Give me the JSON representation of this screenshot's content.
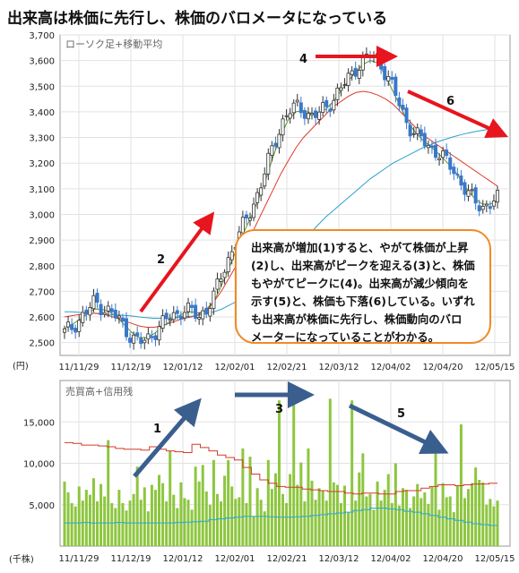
{
  "title": "出来高は株価に先行し、株価のバロメータになっている",
  "annotation_lines": [
    "出来高が増加(1)すると、やがて株価が上昇",
    "(2)し、出来高がピークを迎える(3)と、株価",
    "もやがてピークに(4)。出来高が減少傾向を",
    "示す(5)と、株価も下落(6)している。いずれ",
    "も出来高が株価に先行し、株価動向のバロ",
    "メーターになっていることがわかる。"
  ],
  "colors": {
    "arrow_red": "#e8141e",
    "arrow_blue": "#3a5f8f",
    "volume_bar": "#8dc63f",
    "margin_red": "#d43b2a",
    "margin_cyan": "#2aa7d6",
    "ma_short": "#5a9a2a",
    "ma_mid": "#e03a2a",
    "ma_long": "#2aa0d0",
    "candle_down": "#3a78c8"
  },
  "chart_data": [
    {
      "type": "candlestick",
      "panel_label": "ローソク足+移動平均",
      "ylabel": "(円)",
      "ylim": [
        2450,
        3700
      ],
      "yticks": [
        "2,500",
        "2,600",
        "2,700",
        "2,800",
        "2,900",
        "3,000",
        "3,100",
        "3,200",
        "3,300",
        "3,400",
        "3,500",
        "3,600",
        "3,700"
      ],
      "xticks": [
        "11/11/29",
        "11/12/19",
        "12/01/12",
        "12/02/01",
        "12/02/21",
        "12/03/12",
        "12/04/02",
        "12/04/20",
        "12/05/15"
      ],
      "trend_close": [
        2540,
        2560,
        2590,
        2620,
        2660,
        2640,
        2620,
        2600,
        2560,
        2520,
        2500,
        2510,
        2540,
        2570,
        2600,
        2610,
        2630,
        2620,
        2600,
        2630,
        2680,
        2760,
        2830,
        2900,
        2960,
        3020,
        3090,
        3180,
        3270,
        3350,
        3400,
        3420,
        3410,
        3380,
        3390,
        3420,
        3450,
        3490,
        3530,
        3570,
        3600,
        3620,
        3610,
        3550,
        3490,
        3420,
        3350,
        3310,
        3290,
        3260,
        3240,
        3210,
        3180,
        3130,
        3080,
        3050,
        3030,
        3040,
        3060
      ],
      "ma_short": [
        2555,
        2570,
        2590,
        2610,
        2630,
        2630,
        2620,
        2600,
        2570,
        2540,
        2520,
        2520,
        2535,
        2560,
        2580,
        2600,
        2615,
        2620,
        2615,
        2625,
        2660,
        2720,
        2790,
        2860,
        2930,
        2990,
        3060,
        3140,
        3230,
        3310,
        3370,
        3400,
        3405,
        3395,
        3395,
        3410,
        3440,
        3480,
        3520,
        3555,
        3585,
        3600,
        3590,
        3540,
        3480,
        3420,
        3360,
        3320,
        3290,
        3265,
        3240,
        3210,
        3180,
        3140,
        3095,
        3060,
        3040,
        3040,
        3050
      ],
      "ma_mid": [
        2600,
        2605,
        2610,
        2612,
        2615,
        2612,
        2605,
        2595,
        2585,
        2575,
        2565,
        2560,
        2560,
        2565,
        2575,
        2585,
        2595,
        2600,
        2610,
        2630,
        2660,
        2700,
        2750,
        2800,
        2860,
        2920,
        2980,
        3040,
        3100,
        3160,
        3210,
        3260,
        3300,
        3330,
        3360,
        3390,
        3420,
        3440,
        3460,
        3475,
        3480,
        3475,
        3465,
        3450,
        3430,
        3400,
        3370,
        3340,
        3310,
        3290,
        3270,
        3250,
        3230,
        3210,
        3190,
        3170,
        3150,
        3130,
        3110
      ],
      "ma_long": [
        2620,
        2620,
        2618,
        2616,
        2614,
        2612,
        2610,
        2608,
        2606,
        2604,
        2600,
        2597,
        2595,
        2595,
        2596,
        2598,
        2600,
        2603,
        2607,
        2612,
        2620,
        2630,
        2645,
        2660,
        2680,
        2700,
        2725,
        2750,
        2780,
        2810,
        2840,
        2870,
        2900,
        2930,
        2960,
        2990,
        3015,
        3040,
        3065,
        3090,
        3115,
        3140,
        3160,
        3180,
        3200,
        3215,
        3230,
        3245,
        3260,
        3272,
        3283,
        3293,
        3302,
        3310,
        3317,
        3323,
        3328,
        3332,
        3335
      ],
      "markers": [
        "2",
        "4",
        "6"
      ]
    },
    {
      "type": "bar",
      "panel_label": "売買高+信用残",
      "ylabel": "(千株)",
      "ylim": [
        0,
        20000
      ],
      "yticks": [
        "5,000",
        "10,000",
        "15,000"
      ],
      "xticks": [
        "11/11/29",
        "11/12/19",
        "12/01/12",
        "12/02/01",
        "12/02/21",
        "12/03/12",
        "12/04/02",
        "12/04/20",
        "12/05/15"
      ],
      "volume": [
        7800,
        6500,
        5200,
        4800,
        7200,
        5500,
        6800,
        6200,
        8200,
        5400,
        7500,
        6000,
        12800,
        5200,
        4600,
        6800,
        5200,
        4300,
        5500,
        6300,
        9600,
        5600,
        7100,
        4200,
        7400,
        6800,
        8600,
        7600,
        5400,
        11500,
        6200,
        4600,
        7700,
        5800,
        5600,
        4400,
        9600,
        7800,
        9800,
        6600,
        5000,
        10400,
        6300,
        5400,
        8500,
        10400,
        7200,
        5700,
        5900,
        11800,
        5200,
        10800,
        3600,
        7000,
        5600,
        4200,
        10400,
        6900,
        8800,
        17600,
        6300,
        5200,
        8700,
        17200,
        7400,
        10100,
        5400,
        11800,
        7900,
        5600,
        7000,
        6700,
        5500,
        17800,
        7700,
        7400,
        5200,
        7300,
        4100,
        17600,
        5500,
        8900,
        11200,
        6000,
        6300,
        4400,
        7800,
        5500,
        6800,
        8700,
        5200,
        10000,
        4900,
        7000,
        6800,
        4600,
        6000,
        7500,
        5800,
        6500,
        5100,
        7200,
        11400,
        4400,
        7600,
        5900,
        6000,
        4100,
        7300,
        14700,
        5800,
        6900,
        7600,
        9500,
        8000,
        7700,
        5000,
        5700,
        4800,
        5500
      ],
      "margin_buy": [
        12500,
        12400,
        12200,
        12200,
        12100,
        12000,
        11800,
        11700,
        11700,
        11600,
        12000,
        11700,
        11500,
        11400,
        11300,
        12300,
        11900,
        11500,
        11000,
        10700,
        10400,
        9500,
        8700,
        8000,
        7600,
        7200,
        7100,
        7100,
        6900,
        6800,
        6700,
        6600,
        6600,
        6400,
        6300,
        6400,
        6400,
        6300,
        6300,
        6600,
        6700,
        6700,
        7000,
        7200,
        7400,
        7400,
        7300,
        7400,
        7500,
        7500,
        7600
      ],
      "margin_sell": [
        2800,
        2800,
        2850,
        2800,
        2800,
        2800,
        2850,
        2800,
        2800,
        2800,
        2800,
        2800,
        2800,
        2850,
        2900,
        2950,
        3000,
        3200,
        3300,
        3400,
        3500,
        3600,
        3600,
        3600,
        3550,
        3500,
        3500,
        3550,
        3600,
        3700,
        3800,
        3900,
        4000,
        4100,
        4300,
        4400,
        4600,
        4600,
        4500,
        4400,
        4200,
        4100,
        3900,
        3700,
        3500,
        3300,
        3100,
        2900,
        2700,
        2600,
        2500
      ],
      "markers": [
        "1",
        "3",
        "5"
      ]
    }
  ]
}
